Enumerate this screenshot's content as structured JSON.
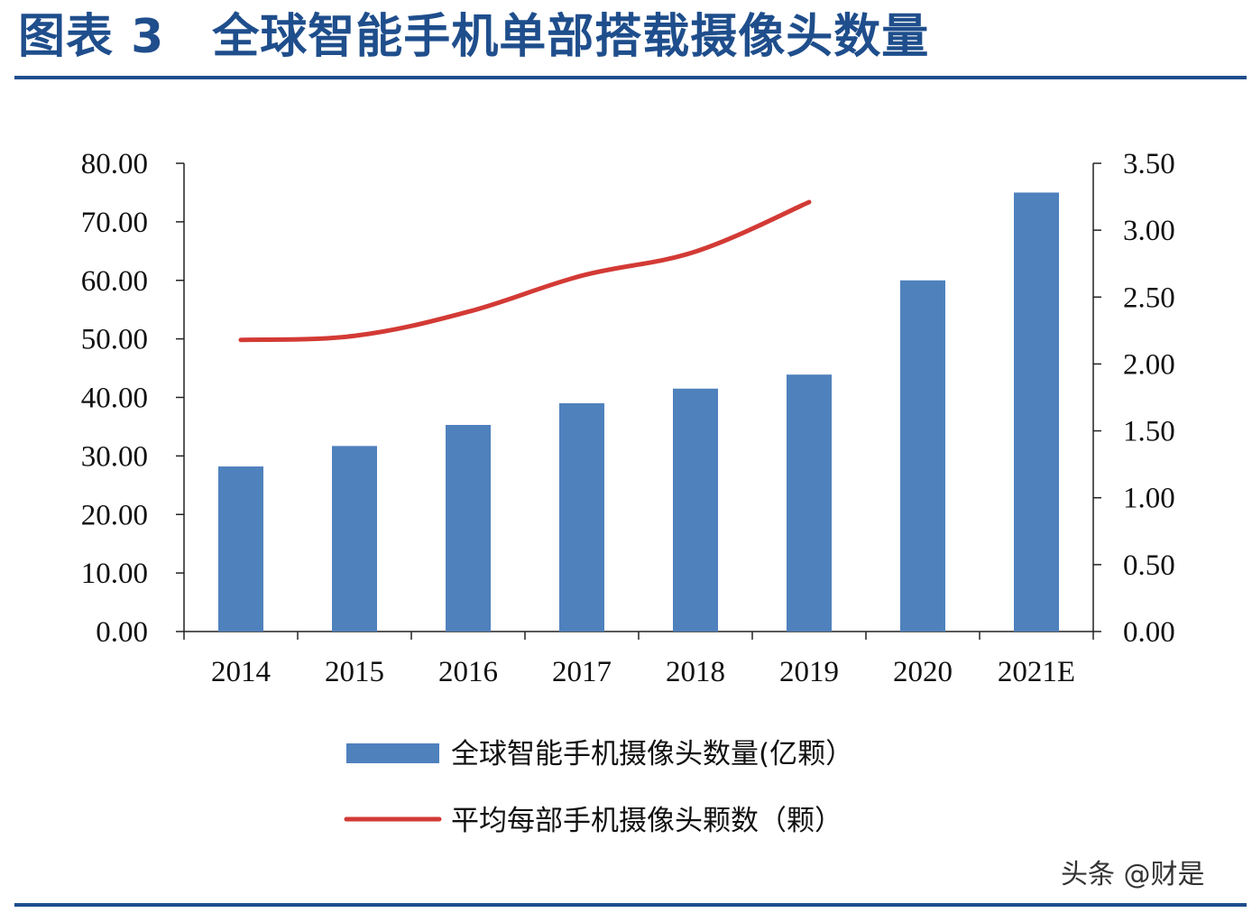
{
  "header": {
    "title": "图表 3　全球智能手机单部搭载摄像头数量"
  },
  "watermark": "头条 @财是",
  "colors": {
    "title": "#1f4e8c",
    "bar": "#4f81bd",
    "line": "#d33a35"
  },
  "chart_data": {
    "type": "bar",
    "categories": [
      "2014",
      "2015",
      "2016",
      "2017",
      "2018",
      "2019",
      "2020",
      "2021E"
    ],
    "series": [
      {
        "name": "全球智能手机摄像头数量(亿颗）",
        "type": "bar",
        "axis": "left",
        "values": [
          28.2,
          31.7,
          35.3,
          39.0,
          41.5,
          43.9,
          60.0,
          75.0
        ]
      },
      {
        "name": "平均每部手机摄像头颗数（颗）",
        "type": "line",
        "axis": "right",
        "values": [
          2.18,
          2.21,
          2.39,
          2.66,
          2.84,
          3.21,
          null,
          null
        ]
      }
    ],
    "y_left": {
      "min": 0,
      "max": 80,
      "ticks": [
        "0.00",
        "10.00",
        "20.00",
        "30.00",
        "40.00",
        "50.00",
        "60.00",
        "70.00",
        "80.00"
      ]
    },
    "y_right": {
      "min": 0,
      "max": 3.5,
      "ticks": [
        "0.00",
        "0.50",
        "1.00",
        "1.50",
        "2.00",
        "2.50",
        "3.00",
        "3.50"
      ]
    },
    "grid": false,
    "legend_position": "bottom"
  }
}
